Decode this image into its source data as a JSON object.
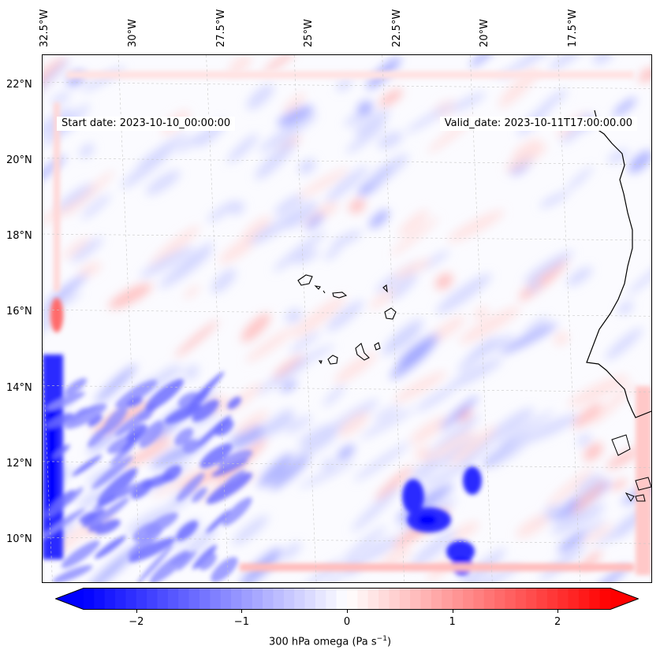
{
  "map": {
    "start_date": "Start date: 2023-10-10_00:00:00",
    "valid_date": "Valid_date: 2023-10-11T17:00:00.00",
    "lon_labels": [
      "32.5°W",
      "30°W",
      "27.5°W",
      "25°W",
      "22.5°W",
      "20°W",
      "17.5°W"
    ],
    "lat_labels": [
      "22°N",
      "20°N",
      "18°N",
      "16°N",
      "14°N",
      "12°N",
      "10°N"
    ],
    "extent": {
      "lon_min": -32.6,
      "lon_max": -15.3,
      "lat_min": 8.9,
      "lat_max": 22.8
    },
    "field": "300 hPa omega",
    "colormap": "bwr",
    "coastline_color": "#000000",
    "gridlines": true
  },
  "colorbar": {
    "label": "300 hPa omega (Pa s",
    "label_sup": "−1",
    "label_close": ")",
    "ticks": [
      "−2",
      "−1",
      "0",
      "1",
      "2"
    ],
    "tick_values": [
      -2,
      -1,
      0,
      1,
      2
    ],
    "range": [
      -2.5,
      2.5
    ],
    "low_color": "#0000ff",
    "mid_color": "#ffffff",
    "high_color": "#ff0000",
    "extend": "both"
  }
}
